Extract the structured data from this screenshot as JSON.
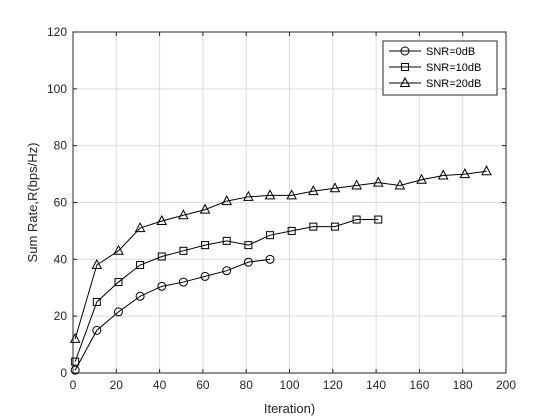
{
  "chart_data": {
    "type": "line",
    "title": "",
    "xlabel": "Iteration)",
    "ylabel": "Sum Rate,R(bps/Hz)",
    "xlim": [
      0,
      200
    ],
    "ylim": [
      0,
      120
    ],
    "xticks": [
      0,
      20,
      40,
      60,
      80,
      100,
      120,
      140,
      160,
      180,
      200
    ],
    "yticks": [
      0,
      20,
      40,
      60,
      80,
      100,
      120
    ],
    "grid": true,
    "legend_position": "top-right",
    "series": [
      {
        "name": "SNR=0dB",
        "marker": "circle",
        "x": [
          1,
          11,
          21,
          31,
          41,
          51,
          61,
          71,
          81,
          91
        ],
        "y": [
          1,
          15,
          21.5,
          27,
          30.5,
          32,
          34,
          36,
          39,
          40
        ]
      },
      {
        "name": "SNR=10dB",
        "marker": "square",
        "x": [
          1,
          11,
          21,
          31,
          41,
          51,
          61,
          71,
          81,
          91,
          101,
          111,
          121,
          131,
          141
        ],
        "y": [
          4,
          25,
          32,
          38,
          41,
          43,
          45,
          46.5,
          45,
          48.5,
          50,
          51.5,
          51.5,
          54,
          54
        ]
      },
      {
        "name": "SNR=20dB",
        "marker": "triangle",
        "x": [
          1,
          11,
          21,
          31,
          41,
          51,
          61,
          71,
          81,
          91,
          101,
          111,
          121,
          131,
          141,
          151,
          161,
          171,
          181,
          191
        ],
        "y": [
          12,
          38,
          43,
          51,
          53.5,
          55.5,
          57.5,
          60.5,
          62,
          62.5,
          62.5,
          64,
          65,
          66,
          67,
          66,
          68,
          69.5,
          70,
          71
        ]
      }
    ],
    "colors": {
      "line": "#000000",
      "grid": "#dcdcdc",
      "axis": "#262626",
      "background": "#ffffff"
    }
  }
}
